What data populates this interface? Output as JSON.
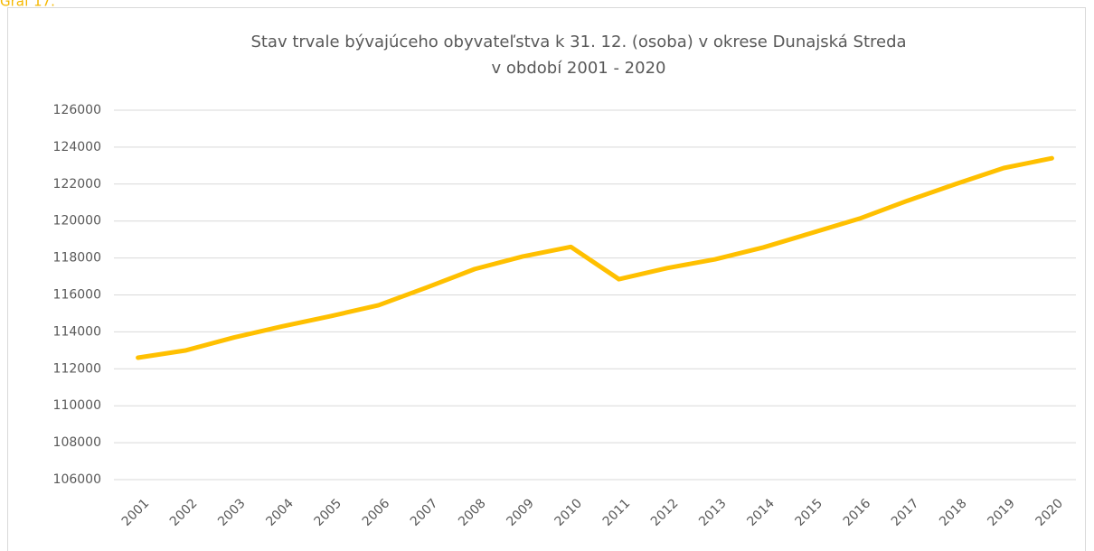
{
  "caption": "Graf 17.",
  "chart_data": {
    "type": "line",
    "title": [
      "Stav trvale bývajúceho obyvateľstva k 31. 12. (osoba) v okrese Dunajská Streda",
      "v období 2001 - 2020"
    ],
    "categories": [
      "2001",
      "2002",
      "2003",
      "2004",
      "2005",
      "2006",
      "2007",
      "2008",
      "2009",
      "2010",
      "2011",
      "2012",
      "2013",
      "2014",
      "2015",
      "2016",
      "2017",
      "2018",
      "2019",
      "2020"
    ],
    "series": [
      {
        "color": "#ffc000",
        "values": [
          112600,
          113000,
          113700,
          114300,
          114850,
          115440,
          116400,
          117400,
          118080,
          118600,
          116850,
          117450,
          117930,
          118570,
          119350,
          120130,
          121100,
          122000,
          122870,
          123400
        ]
      }
    ],
    "ylim": [
      106000,
      126000
    ],
    "yticks": [
      106000,
      108000,
      110000,
      112000,
      114000,
      116000,
      118000,
      120000,
      122000,
      124000,
      126000
    ],
    "grid": true
  }
}
